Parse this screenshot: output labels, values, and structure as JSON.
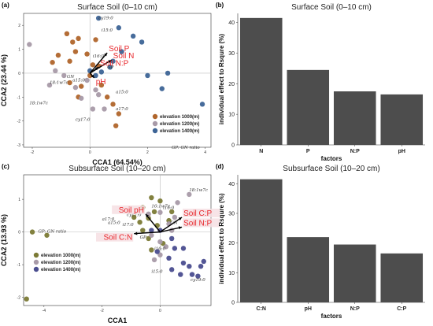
{
  "chart_data": [
    {
      "panel": "(a)",
      "type": "scatter",
      "title": "Surface Soil (0–10 cm)",
      "xlabel": "CCA1 (64.54%)",
      "ylabel": "CCA2 (23.44 %)",
      "xlim": [
        -2.3,
        4.2
      ],
      "ylim": [
        -3.1,
        2.5
      ],
      "x_ticks": [
        "-2",
        "0",
        "2",
        "4"
      ],
      "y_ticks": [
        "2",
        "1",
        "0",
        "-1",
        "-2",
        "-3"
      ],
      "footnote": "GP: GN ratio",
      "legend": [
        {
          "label": "elevation 1000(m)",
          "color": "#b0652b"
        },
        {
          "label": "elevation 1200(m)",
          "color": "#a89aa8"
        },
        {
          "label": "elevation 1400(m)",
          "color": "#3d6496"
        }
      ],
      "vectors": [
        {
          "label": "Soil P",
          "x": 0.6,
          "y": 0.85
        },
        {
          "label": "Soil N",
          "x": 0.75,
          "y": 0.55
        },
        {
          "label": "Soil N:P",
          "x": 0.3,
          "y": 0.25
        },
        {
          "label": "pH",
          "x": 0.15,
          "y": -0.2
        }
      ],
      "species": [
        {
          "label": "cy19:0",
          "x": 0.3,
          "y": 2.25
        },
        {
          "label": "i15:0",
          "x": 0.4,
          "y": 1.75
        },
        {
          "label": "i16:0",
          "x": 0.1,
          "y": 0.65
        },
        {
          "label": "GP",
          "x": 0.6,
          "y": 0.2
        },
        {
          "label": "GN",
          "x": -0.8,
          "y": -0.2
        },
        {
          "label": "a15:0",
          "x": -0.6,
          "y": -0.35
        },
        {
          "label": "18:1w7c",
          "x": -1.4,
          "y": -0.45
        },
        {
          "label": "18:1w7c",
          "x": -2.1,
          "y": -1.3
        },
        {
          "label": "a15:0",
          "x": 0.9,
          "y": -0.85
        },
        {
          "label": "a17:0",
          "x": 0.9,
          "y": -1.55
        },
        {
          "label": "cy17:0",
          "x": -0.5,
          "y": -2.0
        }
      ],
      "series": [
        {
          "name": "elevation 1000(m)",
          "points": [
            [
              -0.8,
              1.65
            ],
            [
              -0.6,
              1.3
            ],
            [
              -0.4,
              1.45
            ],
            [
              0.2,
              1.4
            ],
            [
              -0.5,
              0.9
            ],
            [
              -0.7,
              0.5
            ],
            [
              -1.1,
              0.75
            ],
            [
              -1.3,
              0.45
            ],
            [
              -0.1,
              0.8
            ],
            [
              0.1,
              0.35
            ],
            [
              0.3,
              0.3
            ],
            [
              0.0,
              -0.1
            ],
            [
              -0.3,
              -0.55
            ],
            [
              -0.4,
              -1.0
            ],
            [
              0.6,
              -1.0
            ],
            [
              0.8,
              -1.3
            ],
            [
              1.0,
              -1.7
            ],
            [
              0.9,
              -2.2
            ],
            [
              -0.7,
              -0.4
            ],
            [
              0.4,
              -0.5
            ]
          ]
        },
        {
          "name": "elevation 1200(m)",
          "points": [
            [
              -2.1,
              1.2
            ],
            [
              -1.2,
              0.1
            ],
            [
              -0.9,
              -0.1
            ],
            [
              -1.4,
              -0.5
            ],
            [
              -0.5,
              -0.6
            ],
            [
              -0.1,
              -0.3
            ],
            [
              -0.3,
              -1.05
            ],
            [
              0.2,
              -0.7
            ],
            [
              0.1,
              -1.5
            ],
            [
              0.5,
              -1.5
            ],
            [
              0.3,
              -0.9
            ]
          ]
        },
        {
          "name": "elevation 1400(m)",
          "points": [
            [
              0.3,
              2.3
            ],
            [
              1.0,
              1.9
            ],
            [
              1.5,
              1.55
            ],
            [
              1.8,
              1.3
            ],
            [
              1.1,
              0.9
            ],
            [
              0.8,
              0.5
            ],
            [
              0.7,
              0.25
            ],
            [
              0.4,
              0.05
            ],
            [
              0.2,
              -0.1
            ],
            [
              2.0,
              -0.1
            ],
            [
              2.7,
              0.0
            ],
            [
              2.5,
              -0.65
            ],
            [
              3.9,
              -1.3
            ],
            [
              0.0,
              0.1
            ]
          ]
        }
      ]
    },
    {
      "panel": "(b)",
      "type": "bar",
      "title": "Surface Soil (0–10 cm)",
      "xlabel": "factors",
      "ylabel": "individual effect to Rsqure (%)",
      "ylim": [
        0,
        43
      ],
      "y_ticks": [
        0,
        10,
        20,
        30,
        40
      ],
      "categories": [
        "N",
        "P",
        "N:P",
        "pH"
      ],
      "values": [
        41.5,
        24.5,
        17.5,
        16.5
      ],
      "color": "#4d4d4d"
    },
    {
      "panel": "(c)",
      "type": "scatter",
      "title": "Subsurface Soil (10–20 cm)",
      "xlabel": "CCA1",
      "ylabel": "CCA2 (13.93 %)",
      "xlim": [
        -4.7,
        1.75
      ],
      "ylim": [
        -2.25,
        1.75
      ],
      "x_ticks": [
        "-4",
        "-2",
        "0"
      ],
      "y_ticks": [
        "1",
        "0",
        "-1",
        "-2"
      ],
      "footnote": "GP: GN ratio",
      "legend": [
        {
          "label": "elevation 1000(m)",
          "color": "#7b7a35"
        },
        {
          "label": "elevation 1200(m)",
          "color": "#a89aa8"
        },
        {
          "label": "elevation 1400(m)",
          "color": "#4a4d8f"
        }
      ],
      "vectors": [
        {
          "label": "Soil pH",
          "x": -0.5,
          "y": 0.55
        },
        {
          "label": "Soil C:P",
          "x": 0.75,
          "y": 0.45
        },
        {
          "label": "Soil N:P",
          "x": 0.75,
          "y": 0.15
        },
        {
          "label": "Soil C:N",
          "x": -0.9,
          "y": -0.05
        }
      ],
      "species": [
        {
          "label": "18:1w7c",
          "x": 1.0,
          "y": 1.25
        },
        {
          "label": "16:1w7c",
          "x": -0.3,
          "y": 0.75
        },
        {
          "label": "i16:0",
          "x": 0.1,
          "y": 0.7
        },
        {
          "label": "cy17:0",
          "x": -1.15,
          "y": 0.48
        },
        {
          "label": "a17:0",
          "x": -2.0,
          "y": 0.35
        },
        {
          "label": "a15:0",
          "x": -1.8,
          "y": 0.25
        },
        {
          "label": "i17:0",
          "x": -1.3,
          "y": 0.18
        },
        {
          "label": "GN",
          "x": 0.35,
          "y": 0.25
        },
        {
          "label": "GP",
          "x": -0.7,
          "y": -0.2
        },
        {
          "label": "i16:0",
          "x": -0.2,
          "y": -0.55
        },
        {
          "label": "i15:0",
          "x": -0.3,
          "y": -1.25
        },
        {
          "label": "cy19:0",
          "x": 1.05,
          "y": -1.5
        },
        {
          "label": "GP: GN ratio",
          "x": -4.2,
          "y": -0.02
        }
      ],
      "series": [
        {
          "name": "elevation 1000(m)",
          "points": [
            [
              -4.6,
              -2.05
            ],
            [
              -4.4,
              0.0
            ],
            [
              -3.9,
              -0.1
            ],
            [
              -0.3,
              1.05
            ],
            [
              0.0,
              0.95
            ],
            [
              -0.6,
              0.75
            ],
            [
              -0.2,
              0.62
            ],
            [
              0.4,
              0.62
            ],
            [
              -0.9,
              0.45
            ],
            [
              -0.4,
              0.42
            ],
            [
              -0.7,
              0.3
            ],
            [
              -0.1,
              0.2
            ],
            [
              0.3,
              0.35
            ],
            [
              -0.4,
              -0.2
            ],
            [
              0.1,
              -0.35
            ],
            [
              -0.3,
              -0.55
            ],
            [
              -0.6,
              0.05
            ]
          ]
        },
        {
          "name": "elevation 1200(m)",
          "points": [
            [
              1.0,
              1.15
            ],
            [
              0.6,
              0.9
            ],
            [
              0.0,
              0.6
            ],
            [
              -0.4,
              0.55
            ],
            [
              0.5,
              0.45
            ],
            [
              0.3,
              0.25
            ],
            [
              -0.3,
              -0.1
            ],
            [
              0.0,
              -0.3
            ],
            [
              0.2,
              -0.45
            ],
            [
              0.0,
              -0.7
            ],
            [
              -0.2,
              -0.85
            ],
            [
              0.4,
              0.05
            ]
          ]
        },
        {
          "name": "elevation 1400(m)",
          "points": [
            [
              0.0,
              0.05
            ],
            [
              -0.3,
              0.05
            ],
            [
              0.4,
              -0.2
            ],
            [
              0.5,
              -0.5
            ],
            [
              0.8,
              -0.5
            ],
            [
              -0.1,
              -0.6
            ],
            [
              0.3,
              -0.8
            ],
            [
              0.8,
              -0.95
            ],
            [
              1.0,
              -1.05
            ],
            [
              1.4,
              -1.05
            ],
            [
              0.7,
              -1.3
            ],
            [
              1.1,
              -1.3
            ],
            [
              1.3,
              -1.35
            ],
            [
              0.4,
              -1.15
            ],
            [
              1.5,
              -0.9
            ]
          ]
        }
      ]
    },
    {
      "panel": "(d)",
      "type": "bar",
      "title": "Subsurface Soil (10–20 cm)",
      "xlabel": "factors",
      "ylabel": "individual effect to Rsqure (%)",
      "ylim": [
        0,
        43
      ],
      "y_ticks": [
        0,
        10,
        20,
        30,
        40
      ],
      "categories": [
        "C:N",
        "pH",
        "N:P",
        "C:P"
      ],
      "values": [
        41.5,
        22.0,
        19.5,
        16.5
      ],
      "color": "#4d4d4d"
    }
  ]
}
